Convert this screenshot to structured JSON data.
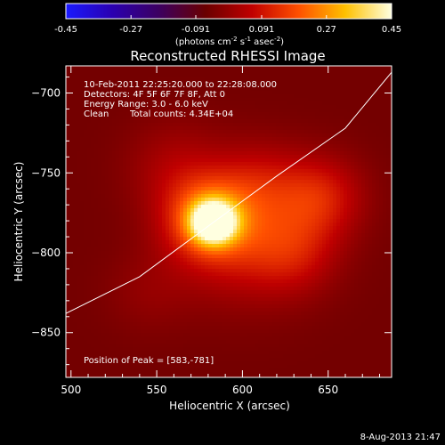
{
  "colorbar": {
    "ticks": [
      "-0.45",
      "-0.27",
      "-0.091",
      "0.091",
      "0.27",
      "0.45"
    ],
    "tick_values": [
      -0.45,
      -0.27,
      -0.091,
      0.091,
      0.27,
      0.45
    ],
    "range": [
      -0.45,
      0.45
    ],
    "units_main": "(photons cm",
    "units_exp1": "-2",
    "units_mid": " s",
    "units_exp2": "-1",
    "units_tail": " asec",
    "units_exp3": "-2",
    "units_close": ")",
    "colormap": [
      "#1a1aff",
      "#2a00b0",
      "#3c0060",
      "#6a0000",
      "#c00000",
      "#ff5000",
      "#ffc000",
      "#ffffe0"
    ]
  },
  "chart_data": {
    "type": "heatmap",
    "title": "Reconstructed RHESSI Image",
    "xlabel": "Heliocentric X (arcsec)",
    "ylabel": "Heliocentric Y (arcsec)",
    "xlim": [
      497,
      687
    ],
    "ylim": [
      -878,
      -683
    ],
    "xticks": [
      500,
      550,
      600,
      650
    ],
    "yticks": [
      -700,
      -750,
      -800,
      -850
    ],
    "annotations": {
      "time": "10-Feb-2011 22:25:20.000 to 22:28:08.000",
      "detectors": "Detectors: 4F 5F 6F 7F 8F, Att 0",
      "energy": "Energy Range: 3.0 - 6.0 keV",
      "method": "Clean",
      "counts": "Total counts: 4.34E+04",
      "peak": "Position of Peak = [583,-781]"
    },
    "peak": [
      583,
      -781
    ],
    "limb_line": [
      [
        497,
        -838
      ],
      [
        540,
        -815
      ],
      [
        583,
        -781
      ],
      [
        620,
        -752
      ],
      [
        660,
        -722
      ],
      [
        687,
        -687
      ]
    ],
    "sources": [
      {
        "x": 583,
        "y": -781,
        "peak": 0.45,
        "sigma": 9
      },
      {
        "x": 580,
        "y": -778,
        "peak": 0.22,
        "sigma": 18
      },
      {
        "x": 600,
        "y": -790,
        "peak": 0.14,
        "sigma": 28
      },
      {
        "x": 645,
        "y": -765,
        "peak": 0.15,
        "sigma": 18
      },
      {
        "x": 630,
        "y": -800,
        "peak": 0.1,
        "sigma": 18
      },
      {
        "x": 560,
        "y": -745,
        "peak": 0.07,
        "sigma": 20
      },
      {
        "x": 610,
        "y": -755,
        "peak": 0.08,
        "sigma": 18
      },
      {
        "x": 545,
        "y": -825,
        "peak": 0.04,
        "sigma": 18
      }
    ],
    "background": -0.05
  },
  "footer": {
    "timestamp": "8-Aug-2013 21:47"
  }
}
